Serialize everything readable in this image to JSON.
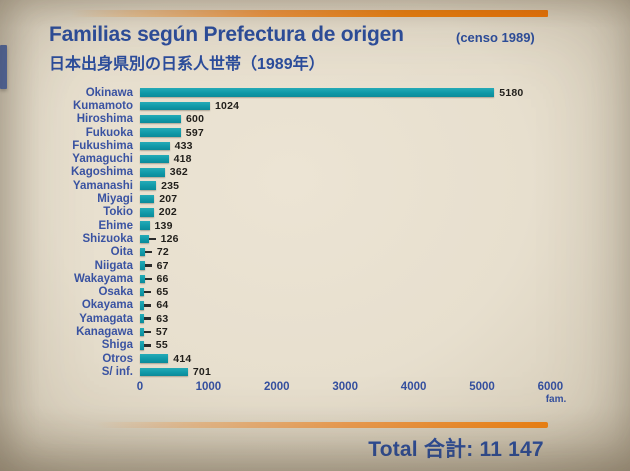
{
  "page": {
    "title": "Familias según Prefectura de origen",
    "title_suffix": "(censo 1989)",
    "subtitle_ja": "日本出身県別の日系人世帯（1989年）",
    "total_label": "Total 合計: 11 147",
    "axis_unit": "fam."
  },
  "colors": {
    "bar_teal": "#1099a8",
    "accent_orange": "#ef8314",
    "text_blue": "#2b4d9d",
    "value_text": "#211f1b",
    "background_cream": "#e7dfce"
  },
  "chart_data": {
    "type": "bar",
    "orientation": "horizontal",
    "title": "Familias según Prefectura de origen (censo 1989)",
    "subtitle": "日本出身県別の日系人世帯（1989年）",
    "categories": [
      "Okinawa",
      "Kumamoto",
      "Hiroshima",
      "Fukuoka",
      "Fukushima",
      "Yamaguchi",
      "Kagoshima",
      "Yamanashi",
      "Miyagi",
      "Tokio",
      "Ehime",
      "Shizuoka",
      "Oita",
      "Niigata",
      "Wakayama",
      "Osaka",
      "Okayama",
      "Yamagata",
      "Kanagawa",
      "Shiga",
      "Otros",
      "S/ inf."
    ],
    "values": [
      5180,
      1024,
      600,
      597,
      433,
      418,
      362,
      235,
      207,
      202,
      139,
      126,
      72,
      67,
      66,
      65,
      64,
      63,
      57,
      55,
      414,
      701
    ],
    "x_ticks": [
      0,
      1000,
      2000,
      3000,
      4000,
      5000,
      6000
    ],
    "xlim": [
      0,
      6000
    ],
    "xlabel": "fam.",
    "ylabel": "",
    "grid": false,
    "legend": false,
    "total": 11147
  }
}
